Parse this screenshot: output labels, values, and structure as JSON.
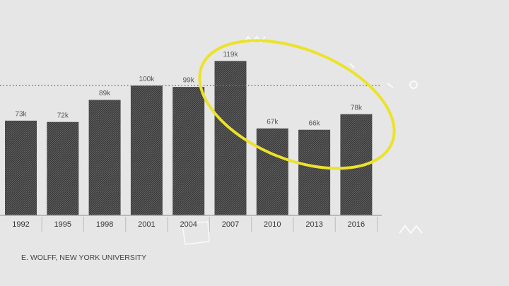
{
  "chart_data": {
    "type": "bar",
    "categories": [
      "1992",
      "1995",
      "1998",
      "2001",
      "2004",
      "2007",
      "2010",
      "2013",
      "2016"
    ],
    "values": [
      73,
      72,
      89,
      100,
      99,
      119,
      67,
      66,
      78
    ],
    "value_labels": [
      "73k",
      "72k",
      "89k",
      "100k",
      "99k",
      "119k",
      "67k",
      "66k",
      "78k"
    ],
    "color": "#3a3a3a",
    "ylim": [
      0,
      166
    ],
    "reference_line": 100,
    "source": "E. WOLFF, NEW YORK UNIVERSITY"
  }
}
